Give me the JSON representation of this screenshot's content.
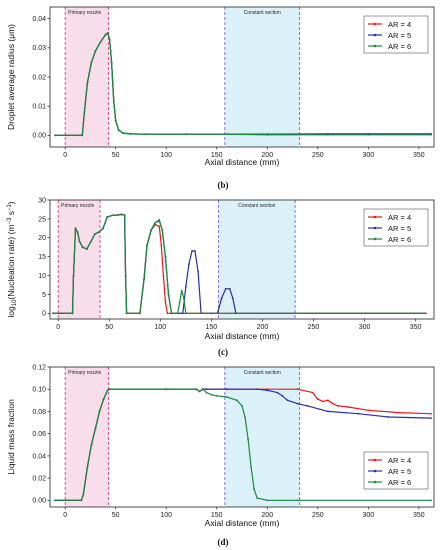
{
  "colors": {
    "AR = 4": "#e8191c",
    "AR = 5": "#2a2fa0",
    "AR = 6": "#1a8a3c",
    "primary_fill": "#f6d8e6",
    "primary_edge": "#d0336f",
    "constant_fill": "#d5eef8",
    "constant_edge": "#6a5acd"
  },
  "chart_data": [
    {
      "id": "b",
      "type": "line",
      "panel_label": "(b)",
      "xlabel": "Axial distance (mm)",
      "ylabel": "Droplet average radius (μm)",
      "xlim": [
        -15,
        365
      ],
      "ylim": [
        -0.004,
        0.044
      ],
      "xticks": [
        0,
        50,
        100,
        150,
        200,
        250,
        300,
        350
      ],
      "yticks": [
        0.0,
        0.01,
        0.02,
        0.03,
        0.04
      ],
      "ytick_labels": [
        "0.00",
        "0.01",
        "0.02",
        "0.03",
        "0.04"
      ],
      "regions": [
        {
          "label": "Primary nozzle",
          "x0": 0,
          "x1": 43
        },
        {
          "label": "Constant section",
          "x0": 158,
          "x1": 232
        }
      ],
      "legend": [
        "AR = 4",
        "AR = 5",
        "AR = 6"
      ],
      "legend_position": "top-right",
      "series": [
        {
          "name": "AR = 4",
          "x": [
            -10,
            17,
            19,
            22,
            26,
            30,
            35,
            40,
            42,
            44,
            46,
            48,
            50,
            53,
            57,
            65,
            80,
            120,
            160,
            200,
            260,
            300,
            362
          ],
          "y": [
            0,
            0,
            0.008,
            0.018,
            0.025,
            0.029,
            0.032,
            0.0345,
            0.035,
            0.033,
            0.025,
            0.012,
            0.005,
            0.0018,
            0.0008,
            0.0005,
            0.0004,
            0.0004,
            0.0004,
            0.0004,
            0.0004,
            0.0004,
            0.0004
          ]
        },
        {
          "name": "AR = 5",
          "x": [
            -10,
            17,
            19,
            22,
            26,
            30,
            35,
            40,
            42,
            44,
            46,
            48,
            50,
            53,
            57,
            65,
            80,
            120,
            160,
            200,
            260,
            300,
            362
          ],
          "y": [
            0,
            0,
            0.008,
            0.018,
            0.025,
            0.029,
            0.032,
            0.0345,
            0.035,
            0.033,
            0.025,
            0.012,
            0.005,
            0.0018,
            0.0008,
            0.0005,
            0.0004,
            0.0004,
            0.0004,
            0.0004,
            0.0005,
            0.0005,
            0.0005
          ]
        },
        {
          "name": "AR = 6",
          "x": [
            -10,
            17,
            19,
            22,
            26,
            30,
            35,
            40,
            42,
            44,
            46,
            48,
            50,
            53,
            57,
            65,
            80,
            120,
            160,
            200,
            260,
            300,
            362
          ],
          "y": [
            0,
            0,
            0.008,
            0.018,
            0.025,
            0.029,
            0.032,
            0.0345,
            0.035,
            0.033,
            0.025,
            0.012,
            0.005,
            0.0018,
            0.0008,
            0.0005,
            0.0004,
            0.0004,
            0.0004,
            0.0002,
            0.0002,
            0.0002,
            0.0002
          ]
        }
      ]
    },
    {
      "id": "c",
      "type": "line",
      "panel_label": "(c)",
      "xlabel": "Axial distance (mm)",
      "ylabel": "log10(Nucleation rate) (m⁻³ s⁻¹)",
      "ylabel_parts": {
        "pre": "log",
        "sub": "10",
        "mid": "(Nucleation rate) (m",
        "sup1": "−3",
        "mid2": "s",
        "sup2": "−1",
        "post": ")"
      },
      "xlim": [
        -8,
        368
      ],
      "ylim": [
        -1.5,
        30
      ],
      "xticks": [
        0,
        50,
        100,
        150,
        200,
        250,
        300,
        350
      ],
      "yticks": [
        0,
        5,
        10,
        15,
        20,
        25,
        30
      ],
      "ytick_labels": [
        "0",
        "5",
        "10",
        "15",
        "20",
        "25",
        "30"
      ],
      "regions": [
        {
          "label": "Primary nozzle",
          "x0": 0,
          "x1": 41
        },
        {
          "label": "Constant section",
          "x0": 157,
          "x1": 232
        }
      ],
      "legend": [
        "AR = 4",
        "AR = 5",
        "AR = 6"
      ],
      "legend_position": "top-right",
      "series": [
        {
          "name": "AR = 4",
          "x": [
            -5,
            14,
            15,
            17,
            19,
            21,
            24,
            28,
            32,
            36,
            40,
            44,
            48,
            54,
            58,
            62,
            65,
            66,
            67,
            80,
            84,
            87,
            91,
            95,
            99,
            101,
            103,
            105,
            107,
            360
          ],
          "y": [
            0,
            0,
            10,
            22.5,
            21.5,
            19,
            17.5,
            17,
            19,
            21,
            21.5,
            22.5,
            25.5,
            26,
            26,
            26.2,
            26,
            10,
            0,
            0,
            9,
            18,
            22,
            23.5,
            23,
            18,
            10,
            3,
            0,
            0
          ]
        },
        {
          "name": "AR = 5",
          "x": [
            -5,
            14,
            15,
            17,
            19,
            21,
            24,
            28,
            32,
            36,
            40,
            44,
            48,
            54,
            58,
            62,
            65,
            66,
            67,
            80,
            84,
            87,
            91,
            95,
            99,
            102,
            105,
            108,
            111,
            122,
            125,
            128,
            131,
            134,
            137,
            140,
            150,
            156,
            160,
            164,
            168,
            171,
            174,
            360
          ],
          "y": [
            0,
            0,
            10,
            22.5,
            21.5,
            19,
            17.5,
            17,
            19,
            21,
            21.5,
            22.5,
            25.5,
            26,
            26,
            26.2,
            26,
            10,
            0,
            0,
            9,
            18,
            22,
            24,
            24.7,
            22,
            15,
            5,
            0,
            0,
            7,
            13,
            16.5,
            16.5,
            11,
            0,
            0,
            0,
            4,
            6.5,
            6.5,
            4,
            0,
            0
          ]
        },
        {
          "name": "AR = 6",
          "x": [
            -5,
            14,
            15,
            17,
            19,
            21,
            24,
            28,
            32,
            36,
            40,
            44,
            48,
            54,
            58,
            62,
            65,
            66,
            67,
            80,
            84,
            87,
            91,
            95,
            99,
            102,
            105,
            108,
            111,
            117,
            119,
            121,
            123,
            125,
            360
          ],
          "y": [
            0,
            0,
            10,
            22.5,
            21.5,
            19,
            17.5,
            17,
            19,
            21,
            21.5,
            22.5,
            25.5,
            26,
            26,
            26.2,
            26,
            10,
            0,
            0,
            9,
            18,
            22,
            24,
            24.5,
            22,
            15,
            5,
            0,
            0,
            3,
            6,
            4,
            0,
            0
          ]
        }
      ]
    },
    {
      "id": "d",
      "type": "line",
      "panel_label": "(d)",
      "xlabel": "Axial distance (mm)",
      "ylabel": "Liquid mass fraction",
      "xlim": [
        -15,
        365
      ],
      "ylim": [
        -0.006,
        0.12
      ],
      "xticks": [
        0,
        50,
        100,
        150,
        200,
        250,
        300,
        350
      ],
      "yticks": [
        0.0,
        0.02,
        0.04,
        0.06,
        0.08,
        0.1,
        0.12
      ],
      "ytick_labels": [
        "0.00",
        "0.02",
        "0.04",
        "0.06",
        "0.08",
        "0.10",
        "0.12"
      ],
      "regions": [
        {
          "label": "Primary nozzle",
          "x0": 0,
          "x1": 43
        },
        {
          "label": "Constant section",
          "x0": 158,
          "x1": 232
        }
      ],
      "legend": [
        "AR = 4",
        "AR = 5",
        "AR = 6"
      ],
      "legend_position": "right",
      "series": [
        {
          "name": "AR = 4",
          "x": [
            -10,
            16,
            18,
            22,
            26,
            30,
            34,
            38,
            42,
            44,
            100,
            130,
            133,
            136,
            140,
            160,
            200,
            230,
            245,
            250,
            255,
            260,
            265,
            270,
            280,
            300,
            330,
            362
          ],
          "y": [
            0,
            0,
            0.005,
            0.03,
            0.05,
            0.065,
            0.08,
            0.091,
            0.099,
            0.1,
            0.1,
            0.1,
            0.098,
            0.1,
            0.1,
            0.1,
            0.1,
            0.1,
            0.097,
            0.091,
            0.089,
            0.09,
            0.087,
            0.085,
            0.084,
            0.081,
            0.079,
            0.078
          ]
        },
        {
          "name": "AR = 5",
          "x": [
            -10,
            16,
            18,
            22,
            26,
            30,
            34,
            38,
            42,
            44,
            100,
            130,
            133,
            136,
            140,
            160,
            190,
            200,
            210,
            215,
            220,
            230,
            240,
            260,
            290,
            320,
            362
          ],
          "y": [
            0,
            0,
            0.005,
            0.03,
            0.05,
            0.065,
            0.08,
            0.091,
            0.099,
            0.1,
            0.1,
            0.1,
            0.098,
            0.1,
            0.1,
            0.1,
            0.1,
            0.099,
            0.097,
            0.094,
            0.09,
            0.087,
            0.085,
            0.08,
            0.078,
            0.075,
            0.074
          ]
        },
        {
          "name": "AR = 6",
          "x": [
            -10,
            16,
            18,
            22,
            26,
            30,
            34,
            38,
            42,
            44,
            100,
            130,
            133,
            136,
            140,
            145,
            150,
            160,
            170,
            175,
            178,
            181,
            184,
            187,
            190,
            200,
            230,
            362
          ],
          "y": [
            0,
            0,
            0.005,
            0.03,
            0.05,
            0.065,
            0.08,
            0.091,
            0.099,
            0.1,
            0.1,
            0.1,
            0.098,
            0.1,
            0.097,
            0.095,
            0.094,
            0.093,
            0.09,
            0.085,
            0.075,
            0.055,
            0.03,
            0.01,
            0.002,
            0,
            0,
            0
          ]
        }
      ]
    }
  ]
}
